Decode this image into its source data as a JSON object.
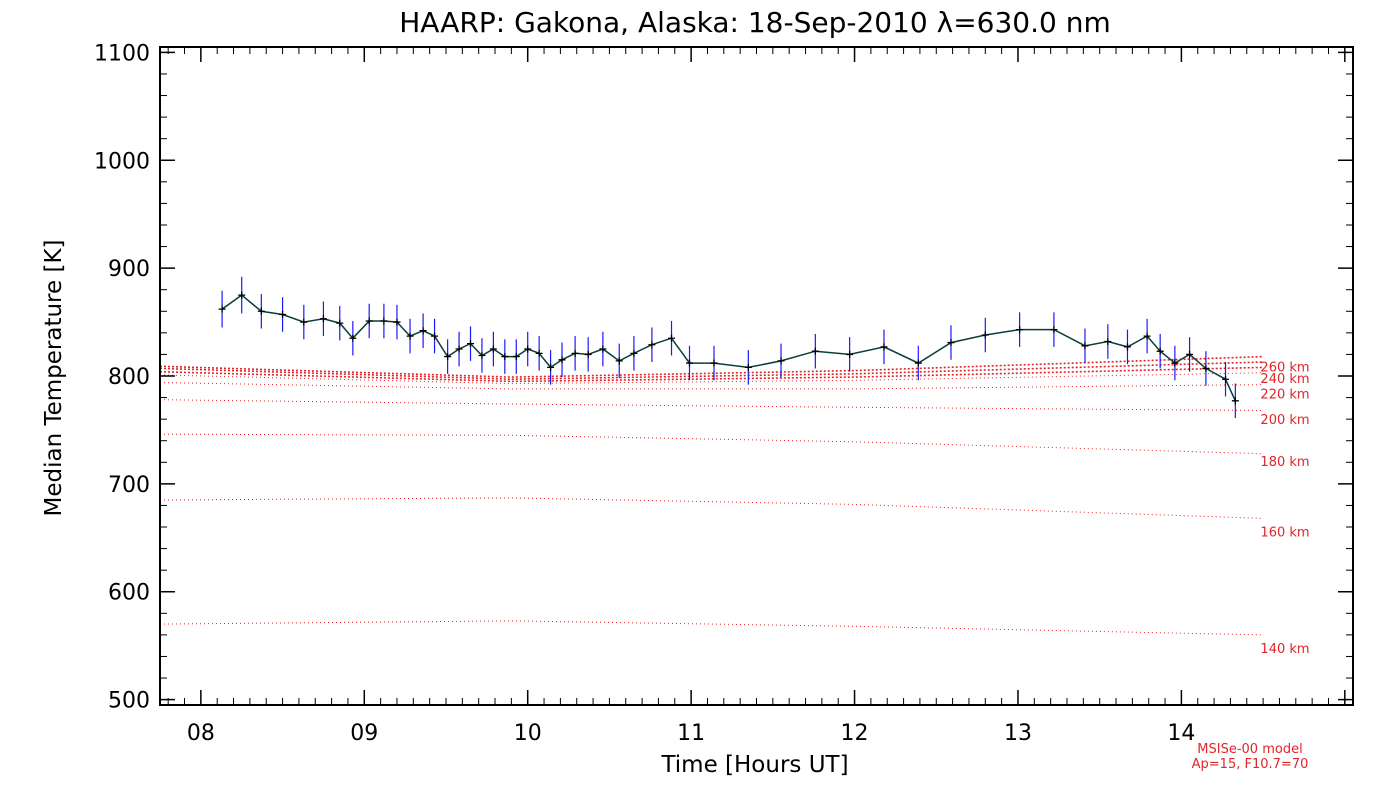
{
  "chart_data": {
    "type": "line",
    "title": "HAARP: Gakona,  Alaska: 18-Sep-2010 λ=630.0 nm",
    "xlabel": "Time [Hours UT]",
    "ylabel": "Median Temperature [K]",
    "xlim": [
      7.75,
      15.05
    ],
    "ylim": [
      495,
      1105
    ],
    "x_ticks": [
      8,
      9,
      10,
      11,
      12,
      13,
      14
    ],
    "x_tick_labels": [
      "08",
      "09",
      "10",
      "11",
      "12",
      "13",
      "14"
    ],
    "y_ticks": [
      500,
      600,
      700,
      800,
      900,
      1000,
      1100
    ],
    "y_tick_labels": [
      "500",
      "600",
      "700",
      "800",
      "900",
      "1000",
      "1100"
    ],
    "grid": false,
    "colors": {
      "measurement_line": "#0a3d3d",
      "error_bars": "#1a1aff",
      "model": "#e0262a",
      "axes": "#000000"
    },
    "series": [
      {
        "kind": "measured",
        "x": [
          8.13,
          8.25,
          8.37,
          8.5,
          8.63,
          8.75,
          8.85,
          8.93,
          9.03,
          9.12,
          9.2,
          9.28,
          9.36,
          9.43,
          9.51,
          9.58,
          9.65,
          9.72,
          9.79,
          9.86,
          9.93,
          10.0,
          10.07,
          10.14,
          10.21,
          10.29,
          10.37,
          10.46,
          10.56,
          10.65,
          10.76,
          10.88,
          10.99,
          11.14,
          11.35,
          11.55,
          11.76,
          11.97,
          12.18,
          12.39,
          12.59,
          12.8,
          13.01,
          13.22,
          13.41,
          13.55,
          13.67,
          13.79,
          13.87,
          13.96,
          14.05,
          14.15,
          14.27,
          14.33
        ],
        "y": [
          862,
          875,
          860,
          857,
          850,
          853,
          849,
          835,
          851,
          851,
          850,
          837,
          842,
          837,
          818,
          825,
          830,
          819,
          825,
          818,
          818,
          825,
          821,
          808,
          815,
          821,
          820,
          825,
          814,
          821,
          829,
          835,
          812,
          812,
          808,
          814,
          823,
          820,
          827,
          812,
          831,
          838,
          843,
          843,
          828,
          832,
          827,
          837,
          823,
          812,
          820,
          807,
          797,
          777
        ],
        "error": [
          17,
          17,
          16,
          16,
          16,
          16,
          16,
          16,
          16,
          16,
          16,
          16,
          16,
          16,
          16,
          16,
          16,
          16,
          16,
          16,
          16,
          16,
          16,
          16,
          16,
          16,
          16,
          16,
          16,
          16,
          16,
          16,
          16,
          16,
          16,
          16,
          16,
          16,
          16,
          16,
          16,
          16,
          16,
          16,
          16,
          16,
          16,
          16,
          16,
          16,
          16,
          16,
          16,
          16
        ]
      },
      {
        "kind": "model",
        "name": "140 km",
        "x": [
          7.75,
          9.9,
          12.0,
          14.5
        ],
        "y": [
          570,
          573,
          568,
          560
        ]
      },
      {
        "kind": "model",
        "name": "160 km",
        "x": [
          7.75,
          9.9,
          12.0,
          14.5
        ],
        "y": [
          685,
          687,
          681,
          668
        ]
      },
      {
        "kind": "model",
        "name": "180 km",
        "x": [
          7.75,
          9.9,
          12.0,
          14.5
        ],
        "y": [
          746,
          745,
          739,
          728
        ]
      },
      {
        "kind": "model",
        "name": "200 km",
        "x": [
          7.75,
          9.9,
          12.0,
          14.5
        ],
        "y": [
          778,
          774,
          771,
          768
        ]
      },
      {
        "kind": "model",
        "name": "220 km",
        "x": [
          7.75,
          9.9,
          12.0,
          14.5
        ],
        "y": [
          794,
          788,
          788,
          792
        ]
      },
      {
        "kind": "model",
        "name": "240 km",
        "x": [
          7.75,
          9.9,
          12.0,
          14.5
        ],
        "y": [
          801,
          793,
          796,
          803
        ]
      },
      {
        "kind": "model",
        "name": "260 km",
        "x": [
          7.75,
          9.9,
          12.0,
          14.5
        ],
        "y": [
          804,
          795,
          799,
          808
        ]
      },
      {
        "kind": "model",
        "name": "",
        "x": [
          7.75,
          9.9,
          12.0,
          14.5
        ],
        "y": [
          807,
          797,
          802,
          813
        ]
      },
      {
        "kind": "model",
        "name": "",
        "x": [
          7.75,
          9.9,
          12.0,
          14.5
        ],
        "y": [
          809,
          799,
          805,
          818
        ]
      }
    ],
    "alt_labels": [
      "260 km",
      "240 km",
      "220 km",
      "200 km",
      "180 km",
      "160 km",
      "140 km"
    ],
    "model_note": [
      "MSISe-00 model",
      "Ap=15, F10.7=70"
    ]
  }
}
